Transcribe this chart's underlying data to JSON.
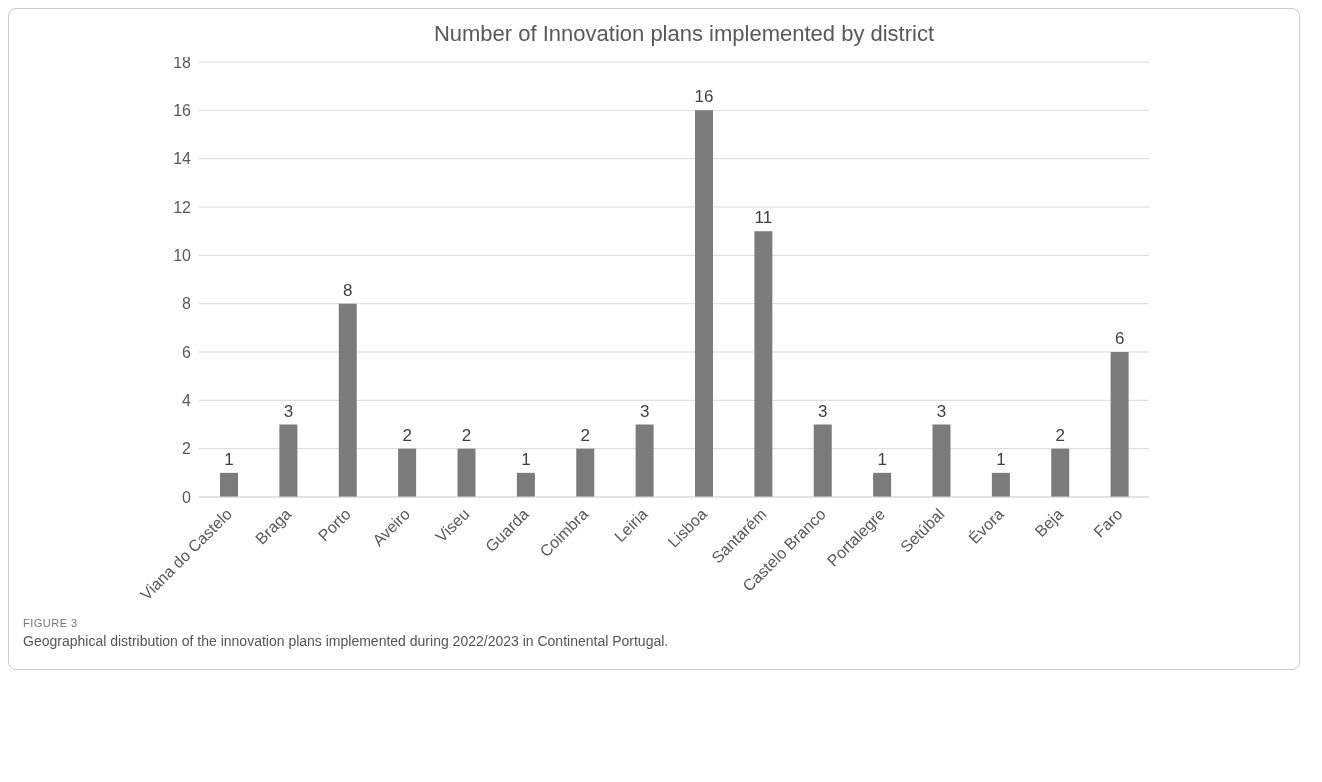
{
  "chart_data": {
    "type": "bar",
    "title": "Number of Innovation plans implemented by district",
    "categories": [
      "Viana do Castelo",
      "Braga",
      "Porto",
      "Aveiro",
      "Viseu",
      "Guarda",
      "Coimbra",
      "Leiria",
      "Lisboa",
      "Santarém",
      "Castelo Branco",
      "Portalegre",
      "Setúbal",
      "Évora",
      "Beja",
      "Faro"
    ],
    "values": [
      1,
      3,
      8,
      2,
      2,
      1,
      2,
      3,
      16,
      11,
      3,
      1,
      3,
      1,
      2,
      6
    ],
    "color": "#7b7b7b",
    "ylim": [
      0,
      18
    ],
    "yticks": [
      0,
      2,
      4,
      6,
      8,
      10,
      12,
      14,
      16,
      18
    ],
    "grid": "y",
    "legend": false,
    "data_labels": true,
    "annotations": [
      "FIGURE 3",
      "Geographical distribution of the innovation plans implemented during 2022/2023 in Continental Portugal."
    ]
  }
}
